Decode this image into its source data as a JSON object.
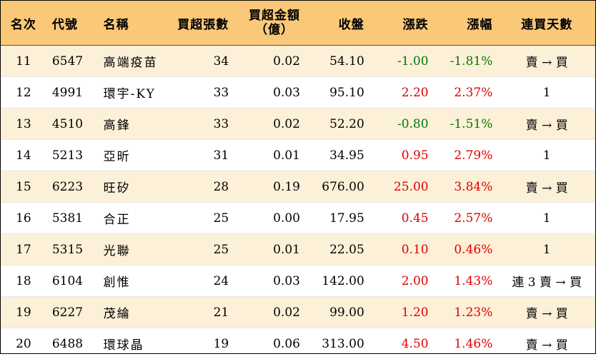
{
  "headers": {
    "rank": "名次",
    "code": "代號",
    "name": "名稱",
    "buy_lots": "買超張數",
    "buy_amount_line1": "買超金額",
    "buy_amount_line2": "（億）",
    "close": "收盤",
    "change": "漲跌",
    "pct": "漲幅",
    "days": "連買天數"
  },
  "colors": {
    "header_bg": "#f9c878",
    "alt_row_bg": "#fdf0d8",
    "up": "#e00000",
    "down": "#007a00"
  },
  "rows": [
    {
      "rank": "11",
      "code": "6547",
      "name": "高端疫苗",
      "lots": "34",
      "amount": "0.02",
      "close": "54.10",
      "change": "-1.00",
      "pct": "-1.81%",
      "days": "賣 → 買",
      "dir": "down"
    },
    {
      "rank": "12",
      "code": "4991",
      "name": "環宇-KY",
      "lots": "33",
      "amount": "0.03",
      "close": "95.10",
      "change": "2.20",
      "pct": "2.37%",
      "days": "1",
      "dir": "up"
    },
    {
      "rank": "13",
      "code": "4510",
      "name": "高鋒",
      "lots": "33",
      "amount": "0.02",
      "close": "52.20",
      "change": "-0.80",
      "pct": "-1.51%",
      "days": "賣 → 買",
      "dir": "down"
    },
    {
      "rank": "14",
      "code": "5213",
      "name": "亞昕",
      "lots": "31",
      "amount": "0.01",
      "close": "34.95",
      "change": "0.95",
      "pct": "2.79%",
      "days": "1",
      "dir": "up"
    },
    {
      "rank": "15",
      "code": "6223",
      "name": "旺矽",
      "lots": "28",
      "amount": "0.19",
      "close": "676.00",
      "change": "25.00",
      "pct": "3.84%",
      "days": "賣 → 買",
      "dir": "up"
    },
    {
      "rank": "16",
      "code": "5381",
      "name": "合正",
      "lots": "25",
      "amount": "0.00",
      "close": "17.95",
      "change": "0.45",
      "pct": "2.57%",
      "days": "1",
      "dir": "up"
    },
    {
      "rank": "17",
      "code": "5315",
      "name": "光聯",
      "lots": "25",
      "amount": "0.01",
      "close": "22.05",
      "change": "0.10",
      "pct": "0.46%",
      "days": "1",
      "dir": "up"
    },
    {
      "rank": "18",
      "code": "6104",
      "name": "創惟",
      "lots": "24",
      "amount": "0.03",
      "close": "142.00",
      "change": "2.00",
      "pct": "1.43%",
      "days": "連 3 賣 → 買",
      "dir": "up"
    },
    {
      "rank": "19",
      "code": "6227",
      "name": "茂綸",
      "lots": "21",
      "amount": "0.02",
      "close": "99.00",
      "change": "1.20",
      "pct": "1.23%",
      "days": "賣 → 買",
      "dir": "up"
    },
    {
      "rank": "20",
      "code": "6488",
      "name": "環球晶",
      "lots": "19",
      "amount": "0.06",
      "close": "313.00",
      "change": "4.50",
      "pct": "1.46%",
      "days": "賣 → 買",
      "dir": "up"
    }
  ]
}
